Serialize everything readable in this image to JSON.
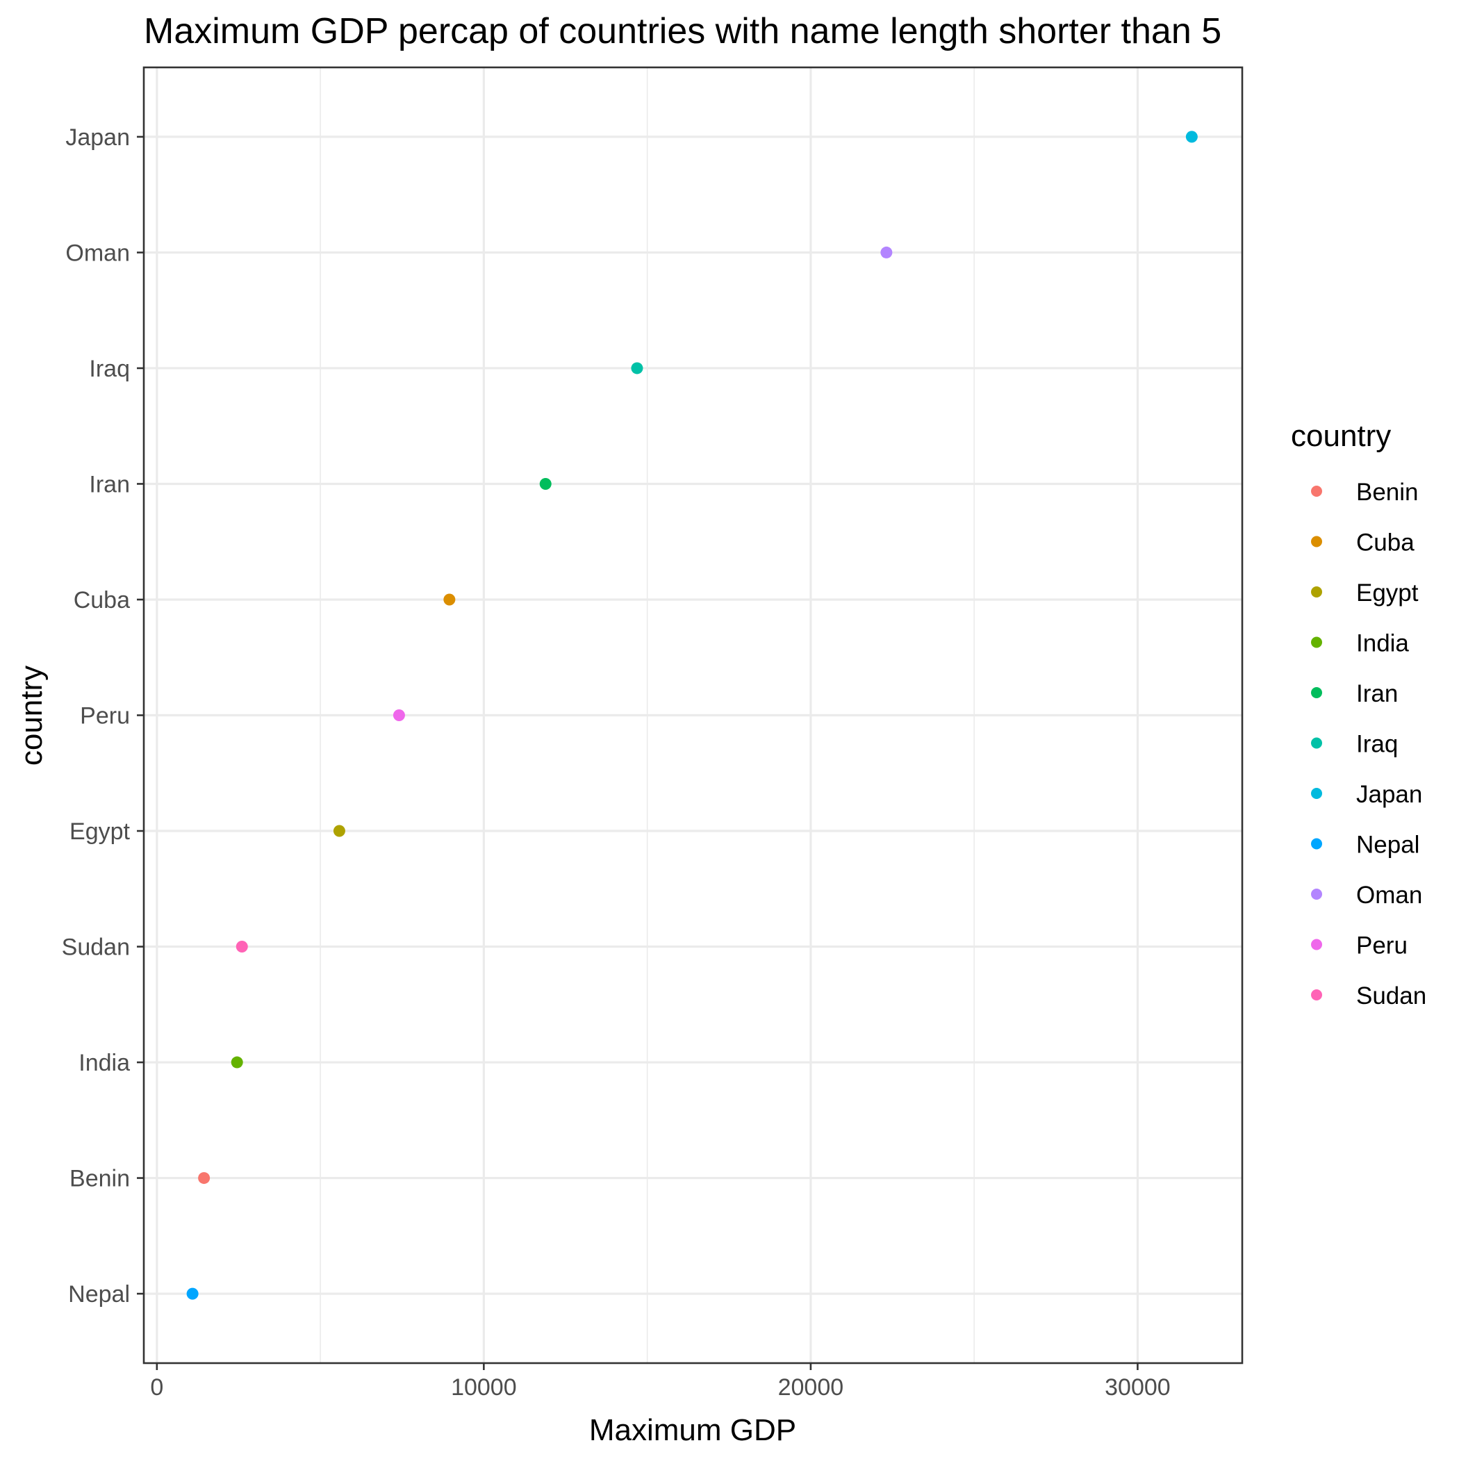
{
  "chart_data": {
    "type": "scatter",
    "title": "Maximum GDP percap of countries with name length shorter than 5",
    "xlabel": "Maximum GDP",
    "ylabel": "country",
    "xlim": [
      -400,
      33200
    ],
    "x_ticks": [
      0,
      10000,
      20000,
      30000
    ],
    "x_tick_labels": [
      "0",
      "10000",
      "20000",
      "30000"
    ],
    "grid": true,
    "legend_position": "right",
    "legend_title": "country",
    "categories": [
      "Nepal",
      "Benin",
      "India",
      "Sudan",
      "Egypt",
      "Peru",
      "Cuba",
      "Iran",
      "Iraq",
      "Oman",
      "Japan"
    ],
    "points": [
      {
        "country": "Nepal",
        "value": 1090
      },
      {
        "country": "Benin",
        "value": 1441
      },
      {
        "country": "India",
        "value": 2452
      },
      {
        "country": "Sudan",
        "value": 2602
      },
      {
        "country": "Egypt",
        "value": 5581
      },
      {
        "country": "Peru",
        "value": 7409
      },
      {
        "country": "Cuba",
        "value": 8948
      },
      {
        "country": "Iran",
        "value": 11889
      },
      {
        "country": "Iraq",
        "value": 14688
      },
      {
        "country": "Oman",
        "value": 22316
      },
      {
        "country": "Japan",
        "value": 31656
      }
    ],
    "legend_entries": [
      {
        "name": "Benin",
        "color": "#F8766D"
      },
      {
        "name": "Cuba",
        "color": "#DB8E00"
      },
      {
        "name": "Egypt",
        "color": "#AEA200"
      },
      {
        "name": "India",
        "color": "#64B200"
      },
      {
        "name": "Iran",
        "color": "#00BD5C"
      },
      {
        "name": "Iraq",
        "color": "#00C1A7"
      },
      {
        "name": "Japan",
        "color": "#00BADE"
      },
      {
        "name": "Nepal",
        "color": "#00A6FF"
      },
      {
        "name": "Oman",
        "color": "#B385FF"
      },
      {
        "name": "Peru",
        "color": "#EF67EB"
      },
      {
        "name": "Sudan",
        "color": "#FF63B6"
      }
    ]
  }
}
